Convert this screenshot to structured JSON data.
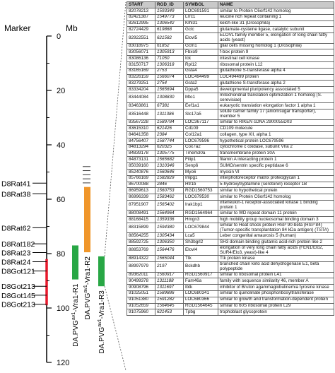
{
  "map": {
    "marker_header": "Marker",
    "mb_header": "Mb",
    "ticks": [
      {
        "label": "0",
        "mb": 0
      },
      {
        "label": "20",
        "mb": 20
      },
      {
        "label": "40",
        "mb": 40
      },
      {
        "label": "60",
        "mb": 60
      },
      {
        "label": "80",
        "mb": 80
      },
      {
        "label": "100",
        "mb": 100
      },
      {
        "label": "120",
        "mb": 120
      }
    ],
    "minor_tick_mb": [
      10,
      30,
      50,
      70,
      90,
      110
    ],
    "markers": [
      {
        "name": "D8Rat41",
        "mb": 54.1
      },
      {
        "name": "D8Rat38",
        "mb": 58.0
      },
      {
        "name": "D8Rat62",
        "mb": 70.5
      },
      {
        "name": "D8Rat182",
        "mb": 76.4
      },
      {
        "name": "D8Rat23",
        "mb": 79.6
      },
      {
        "name": "D8Rat24",
        "mb": 83.0
      },
      {
        "name": "D8Got121",
        "mb": 86.4
      },
      {
        "name": "D8Got213",
        "mb": 92.0
      },
      {
        "name": "D8Got145",
        "mb": 95.3
      },
      {
        "name": "D8Got213",
        "mb": 98.6
      }
    ],
    "red_interval_mb": [
      82.0,
      99.0
    ],
    "intervals": [
      {
        "label_main": "DA.PVG",
        "label_sup": "av1",
        "label_tail": "-Vra1-R1",
        "color": "#28a745",
        "start_mb": 77.0,
        "end_mb": 89.5
      },
      {
        "label_main": "DA.PVG",
        "label_sup": "av1",
        "label_tail": "-Vra1-R2",
        "color": "#f0962a",
        "start_mb": 55.5,
        "end_mb": 79.5
      },
      {
        "label_main": "DA.PVG",
        "label_sup": "av1",
        "label_tail": "-Vra1-R3",
        "color": "#28a745",
        "start_mb": 81.0,
        "end_mb": 92.0
      }
    ],
    "hatch_mb": [
      48.0,
      49.5,
      51.0,
      52.5,
      54.0
    ]
  },
  "table": {
    "headers": [
      "START",
      "RGD_ID",
      "SYMBOL",
      "NAME"
    ],
    "rows": [
      {
        "start": "82078213",
        "rgd": "1593349",
        "symbol": "LOC691591",
        "name": "similar to Protein C6orf142 homolog"
      },
      {
        "start": "82421387",
        "rgd": "1549773",
        "symbol": "Lrrc1",
        "name": "leucine rich repeat containing 1"
      },
      {
        "start": "82612995",
        "rgd": "1306542",
        "symbol": "Klhl31",
        "name": "kelch-like 31 (Drosophila)"
      },
      {
        "start": "82724429",
        "rgd": "619868",
        "symbol": "Gclc",
        "name": "glutamate-cysteine ligase, catalytic subunit"
      },
      {
        "start": "82922551",
        "rgd": "621582",
        "symbol": "Elovl5",
        "name": "ELOVL family member 5, elongation of long chain fatty acids (yeast)"
      },
      {
        "start": "83018975",
        "rgd": "61852",
        "symbol": "Gcm1",
        "name": "glial cells missing homolog 1 (Drosophila)"
      },
      {
        "start": "83056071",
        "rgd": "1305913",
        "symbol": "Fbxo9",
        "name": "f-box protein 9"
      },
      {
        "start": "83086136",
        "rgd": "71050",
        "symbol": "Ick",
        "name": "intestinal cell kinase"
      },
      {
        "start": "83150717",
        "rgd": "1306318",
        "symbol": "Rpl12",
        "name": "ribosomal protein L12"
      },
      {
        "start": "83165169",
        "rgd": "2753",
        "symbol": "Gsta4",
        "name": "glutathione S-transferase alpha 4"
      },
      {
        "start": "83226159",
        "rgd": "1566074",
        "symbol": "LOC494499",
        "name": "LOC494499 protein"
      },
      {
        "start": "83279251",
        "rgd": "2754",
        "symbol": "Gsta2",
        "name": "glutathione S-transferase alpha 2"
      },
      {
        "start": "83334204",
        "rgd": "1565694",
        "symbol": "Dppa5",
        "name": "developmental pluripotency associated 5"
      },
      {
        "start": "83444084",
        "rgd": "1308830",
        "symbol": "Mto1",
        "name": "mitochondrial translation optimization 1 homolog (S. cerevisiae)"
      },
      {
        "start": "83463861",
        "rgd": "67381",
        "symbol": "Eef1a1",
        "name": "eukaryotic translation elongation factor 1 alpha 1"
      },
      {
        "start": "83516448",
        "rgd": "1311386",
        "symbol": "Slc17a5",
        "name": "solute carrier family 17 (anion/sugar transporter), member 5"
      },
      {
        "start": "83567228",
        "rgd": "1589784",
        "symbol": "LOC367117",
        "name": "similar to RIKEN cDNA 2900055D03"
      },
      {
        "start": "83615310",
        "rgd": "621426",
        "symbol": "Cd109",
        "name": "CD109 molecule"
      },
      {
        "start": "84641358",
        "rgd": "2384",
        "symbol": "Col12a1",
        "name": "collagen, type XII, alpha 1"
      },
      {
        "start": "84756407",
        "rgd": "1587744",
        "symbol": "LOC679596",
        "name": "hypothetical protein LOC679596"
      },
      {
        "start": "84813294",
        "rgd": "620325",
        "symbol": "Cox7a2",
        "name": "cytochrome c oxidase, subunit VIIa 2"
      },
      {
        "start": "84839178",
        "rgd": "1305775",
        "symbol": "Tmem30a",
        "name": "transmembrane protein 30A"
      },
      {
        "start": "84873131",
        "rgd": "1565682",
        "symbol": "Filip1",
        "name": "filamin A interacting protein 1"
      },
      {
        "start": "85039160",
        "rgd": "1310346",
        "symbol": "Senp6",
        "name": "SUMO/sentrin specific peptidase 6"
      },
      {
        "start": "85240876",
        "rgd": "1560646",
        "symbol": "Myo6",
        "name": "myosin VI"
      },
      {
        "start": "85766169",
        "rgd": "1582829",
        "symbol": "Impg1",
        "name": "interphotoreceptor matrix proteoglycan 1"
      },
      {
        "start": "86700088",
        "rgd": "2846",
        "symbol": "Htr1b",
        "name": "5-hydroxytryptamine (serotonin) receptor 1B"
      },
      {
        "start": "86959613",
        "rgd": "1560753",
        "symbol": "RGD1560753",
        "name": "similar to hypothetical protein"
      },
      {
        "start": "86996339",
        "rgd": "1583462",
        "symbol": "LOC679530",
        "name": "similar to Protein C6orf142 homolog"
      },
      {
        "start": "87951907",
        "rgd": "1565402",
        "symbol": "Irak1bp1",
        "name": "interleukin-1 receptor-associated kinase 1 binding protein 1"
      },
      {
        "start": "88008491",
        "rgd": "1564964",
        "symbol": "RGD1564964",
        "name": "similar to WD repeat domain 11 protein"
      },
      {
        "start": "88168415",
        "rgd": "1359336",
        "symbol": "Hmgn3",
        "name": "high mobility group nucleosomal binding domain 3"
      },
      {
        "start": "88315899",
        "rgd": "1594380",
        "symbol": "LOC679844",
        "name": "similar to Heat shock protein HSP 90-beta (HSP 84) (Tumor-specific transplantation 84 kDa antigen) (TSTA)"
      },
      {
        "start": "88564255",
        "rgd": "1305434",
        "symbol": "Lca5",
        "name": "Leber congenital amaurosis 5 (human)"
      },
      {
        "start": "88592725",
        "rgd": "1306350",
        "symbol": "Sh3bgrl2",
        "name": "SH3 domain binding glutamic acid-rich protein like 2"
      },
      {
        "start": "88853769",
        "rgd": "1564476",
        "symbol": "Elovl4",
        "name": "elongation of very long chain fatty acids (FEN1/Elo2, SUR4/Elo3, yeast)-like 4"
      },
      {
        "start": "88914322",
        "rgd": "1565044",
        "symbol": "Ttk",
        "name": "Ttk protein kinase"
      },
      {
        "start": "88997979",
        "rgd": "2197",
        "symbol": "Bckdhb",
        "name": "branched chain keto acid dehydrogenase E1, beta polypeptide"
      },
      {
        "start": "89362011",
        "rgd": "1560917",
        "symbol": "RGD1560917",
        "name": "similar to ribosomal protein L41"
      },
      {
        "start": "90499378",
        "rgd": "1311188",
        "symbol": "Fam46a",
        "name": "family with sequence similarity 46, member A"
      },
      {
        "start": "90908796",
        "rgd": "1311697",
        "symbol": "Ibtk",
        "name": "inhibitor of Bruton agammaglobulinemia tyrosine kinase"
      },
      {
        "start": "91025051",
        "rgd": "1589886",
        "symbol": "LOC680341",
        "name": "similar to quinolinate phosphoribosyltransferase"
      },
      {
        "start": "91051380",
        "rgd": "1591282",
        "symbol": "LOC680366",
        "name": "similar to growth and transformation-dependent protein"
      },
      {
        "start": "91052659",
        "rgd": "1564645",
        "symbol": "RGD1564645",
        "name": "similar to 60S ribosomal protein L29"
      },
      {
        "start": "91075960",
        "rgd": "621453",
        "symbol": "Tpbg",
        "name": "trophoblast glycoprotein"
      }
    ]
  }
}
